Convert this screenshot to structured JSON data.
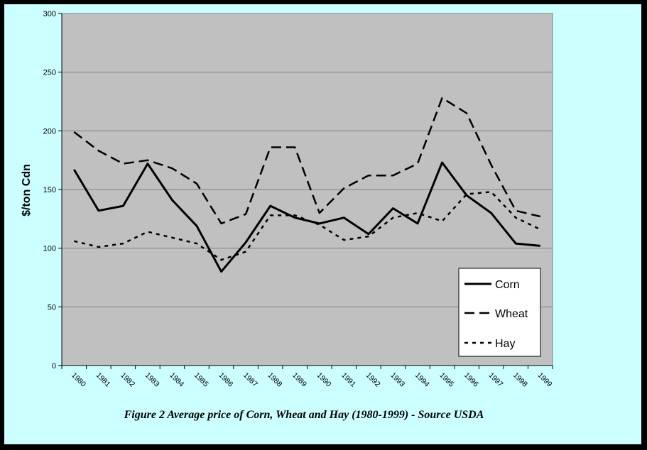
{
  "chart_data": {
    "type": "line",
    "title": "",
    "caption": "Figure 2 Average price of Corn, Wheat and Hay (1980-1999) - Source USDA",
    "xlabel": "",
    "ylabel": "$/ton Cdn",
    "ylim": [
      0,
      300
    ],
    "yticks": [
      "0",
      "50",
      "100",
      "150",
      "200",
      "250",
      "300"
    ],
    "grid": true,
    "legend_position": "bottom-right",
    "plot_background": "#c0c0c0",
    "page_background": "#ccffff",
    "x": [
      "1980",
      "1981",
      "1982",
      "1983",
      "1984",
      "1985",
      "1986",
      "1987",
      "1988",
      "1989",
      "1990",
      "1991",
      "1992",
      "1993",
      "1994",
      "1995",
      "1996",
      "1997",
      "1998",
      "1999"
    ],
    "series": [
      {
        "name": "Corn",
        "style": "solid",
        "values": [
          167,
          132,
          136,
          172,
          141,
          119,
          80,
          105,
          136,
          126,
          121,
          126,
          112,
          134,
          121,
          173,
          145,
          130,
          104,
          102
        ]
      },
      {
        "name": "Wheat",
        "style": "long-dash",
        "values": [
          199,
          183,
          172,
          175,
          168,
          155,
          121,
          129,
          186,
          186,
          130,
          151,
          162,
          162,
          172,
          228,
          215,
          171,
          132,
          127
        ]
      },
      {
        "name": "Hay",
        "style": "short-dash",
        "values": [
          106,
          101,
          104,
          114,
          109,
          104,
          90,
          97,
          128,
          128,
          120,
          107,
          110,
          126,
          130,
          123,
          146,
          148,
          126,
          116
        ]
      }
    ]
  }
}
